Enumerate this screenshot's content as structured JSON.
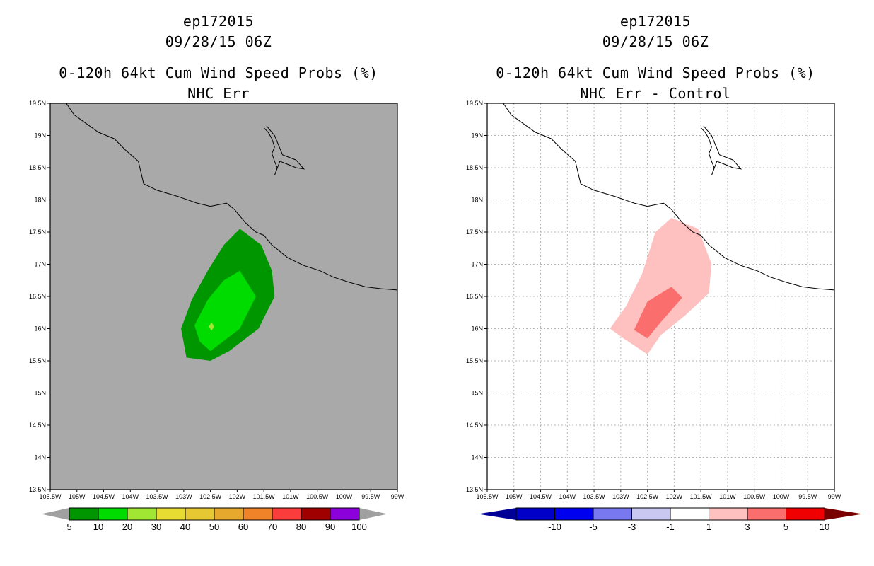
{
  "chart_data": [
    {
      "type": "heatmap",
      "storm_id": "ep172015",
      "datetime": "09/28/15 06Z",
      "title": "0-120h 64kt Cum Wind Speed Probs (%)",
      "subtitle": "NHC Err",
      "lon_labels": [
        "105.5W",
        "105W",
        "104.5W",
        "104W",
        "103.5W",
        "103W",
        "102.5W",
        "102W",
        "101.5W",
        "101W",
        "100.5W",
        "100W",
        "99.5W",
        "99W"
      ],
      "lat_labels": [
        "13.5N",
        "14N",
        "14.5N",
        "15N",
        "15.5N",
        "16N",
        "16.5N",
        "17N",
        "17.5N",
        "18N",
        "18.5N",
        "19N",
        "19.5N"
      ],
      "xlim": [
        -105.5,
        -99.0
      ],
      "ylim": [
        13.5,
        19.5
      ],
      "background_color": "#a9a9a9",
      "grid": false,
      "contours": [
        {
          "level": "5-10",
          "color": "#009600",
          "points": [
            [
              -103.05,
              16.0
            ],
            [
              -102.85,
              16.45
            ],
            [
              -102.55,
              16.9
            ],
            [
              -102.25,
              17.3
            ],
            [
              -101.95,
              17.55
            ],
            [
              -101.55,
              17.3
            ],
            [
              -101.35,
              16.9
            ],
            [
              -101.3,
              16.5
            ],
            [
              -101.6,
              16.0
            ],
            [
              -102.15,
              15.65
            ],
            [
              -102.5,
              15.5
            ],
            [
              -102.95,
              15.55
            ]
          ]
        },
        {
          "level": "10-20",
          "color": "#00dc00",
          "points": [
            [
              -102.8,
              16.05
            ],
            [
              -102.55,
              16.45
            ],
            [
              -102.25,
              16.75
            ],
            [
              -101.95,
              16.9
            ],
            [
              -101.65,
              16.5
            ],
            [
              -101.95,
              16.0
            ],
            [
              -102.5,
              15.65
            ],
            [
              -102.7,
              15.8
            ]
          ]
        },
        {
          "level": "20-30",
          "color": "#a0e632",
          "points": [
            [
              -102.53,
              16.03
            ],
            [
              -102.48,
              16.1
            ],
            [
              -102.43,
              16.03
            ],
            [
              -102.48,
              15.97
            ]
          ]
        }
      ],
      "colorbar": {
        "labels": [
          "5",
          "10",
          "20",
          "30",
          "40",
          "50",
          "60",
          "70",
          "80",
          "90",
          "100"
        ],
        "colors": [
          "#009600",
          "#00dc00",
          "#a0e632",
          "#e6dc32",
          "#e6c832",
          "#e6a82d",
          "#f08228",
          "#fa3c3c",
          "#a00000",
          "#8c00dc"
        ],
        "end_color": "#a0a0a0"
      }
    },
    {
      "type": "heatmap",
      "storm_id": "ep172015",
      "datetime": "09/28/15 06Z",
      "title": "0-120h 64kt Cum Wind Speed Probs (%)",
      "subtitle": "NHC Err - Control",
      "lon_labels": [
        "105.5W",
        "105W",
        "104.5W",
        "104W",
        "103.5W",
        "103W",
        "102.5W",
        "102W",
        "101.5W",
        "101W",
        "100.5W",
        "100W",
        "99.5W",
        "99W"
      ],
      "lat_labels": [
        "13.5N",
        "14N",
        "14.5N",
        "15N",
        "15.5N",
        "16N",
        "16.5N",
        "17N",
        "17.5N",
        "18N",
        "18.5N",
        "19N",
        "19.5N"
      ],
      "xlim": [
        -105.5,
        -99.0
      ],
      "ylim": [
        13.5,
        19.5
      ],
      "background_color": "#ffffff",
      "grid": true,
      "contours": [
        {
          "level": "1-3",
          "color": "#ffc0c0",
          "points": [
            [
              -103.2,
              16.0
            ],
            [
              -102.9,
              16.35
            ],
            [
              -102.6,
              16.85
            ],
            [
              -102.35,
              17.5
            ],
            [
              -102.05,
              17.72
            ],
            [
              -101.55,
              17.55
            ],
            [
              -101.3,
              17.0
            ],
            [
              -101.35,
              16.55
            ],
            [
              -101.8,
              16.2
            ],
            [
              -102.25,
              15.9
            ],
            [
              -102.5,
              15.6
            ],
            [
              -102.95,
              15.85
            ]
          ]
        },
        {
          "level": "3-5",
          "color": "#fa6e6e",
          "points": [
            [
              -102.75,
              15.98
            ],
            [
              -102.5,
              16.42
            ],
            [
              -102.05,
              16.65
            ],
            [
              -101.85,
              16.48
            ],
            [
              -102.25,
              16.1
            ],
            [
              -102.5,
              15.85
            ]
          ]
        }
      ],
      "colorbar": {
        "labels": [
          "-10",
          "-5",
          "-3",
          "-1",
          "1",
          "3",
          "5",
          "10"
        ],
        "colors": [
          "#0000c8",
          "#0000f0",
          "#7878f0",
          "#c8c8f0",
          "#ffffff",
          "#ffc0c0",
          "#fa6e6e",
          "#f00000"
        ],
        "end_low": "#000096",
        "end_high": "#780000"
      }
    }
  ],
  "coastline": [
    [
      -105.2,
      19.5
    ],
    [
      -105.05,
      19.32
    ],
    [
      -104.85,
      19.2
    ],
    [
      -104.6,
      19.05
    ],
    [
      -104.3,
      18.95
    ],
    [
      -104.1,
      18.78
    ],
    [
      -103.85,
      18.6
    ],
    [
      -103.75,
      18.25
    ],
    [
      -103.5,
      18.15
    ],
    [
      -103.1,
      18.05
    ],
    [
      -102.75,
      17.95
    ],
    [
      -102.5,
      17.9
    ],
    [
      -102.2,
      17.95
    ],
    [
      -102.05,
      17.85
    ],
    [
      -101.85,
      17.65
    ],
    [
      -101.65,
      17.5
    ],
    [
      -101.5,
      17.45
    ],
    [
      -101.35,
      17.3
    ],
    [
      -101.05,
      17.1
    ],
    [
      -100.75,
      16.98
    ],
    [
      -100.45,
      16.9
    ],
    [
      -100.2,
      16.8
    ],
    [
      -99.9,
      16.72
    ],
    [
      -99.6,
      16.65
    ],
    [
      -99.3,
      16.62
    ],
    [
      -99.0,
      16.6
    ]
  ],
  "lake": [
    [
      -101.5,
      19.12
    ],
    [
      -101.42,
      19.05
    ],
    [
      -101.35,
      18.95
    ],
    [
      -101.3,
      18.82
    ],
    [
      -101.35,
      18.72
    ],
    [
      -101.3,
      18.6
    ],
    [
      -101.25,
      18.5
    ],
    [
      -101.3,
      18.38
    ],
    [
      -101.2,
      18.6
    ],
    [
      -101.05,
      18.55
    ],
    [
      -100.9,
      18.5
    ],
    [
      -100.75,
      18.48
    ],
    [
      -100.9,
      18.62
    ],
    [
      -101.15,
      18.7
    ],
    [
      -101.2,
      18.8
    ],
    [
      -101.3,
      19.0
    ],
    [
      -101.45,
      19.15
    ]
  ]
}
